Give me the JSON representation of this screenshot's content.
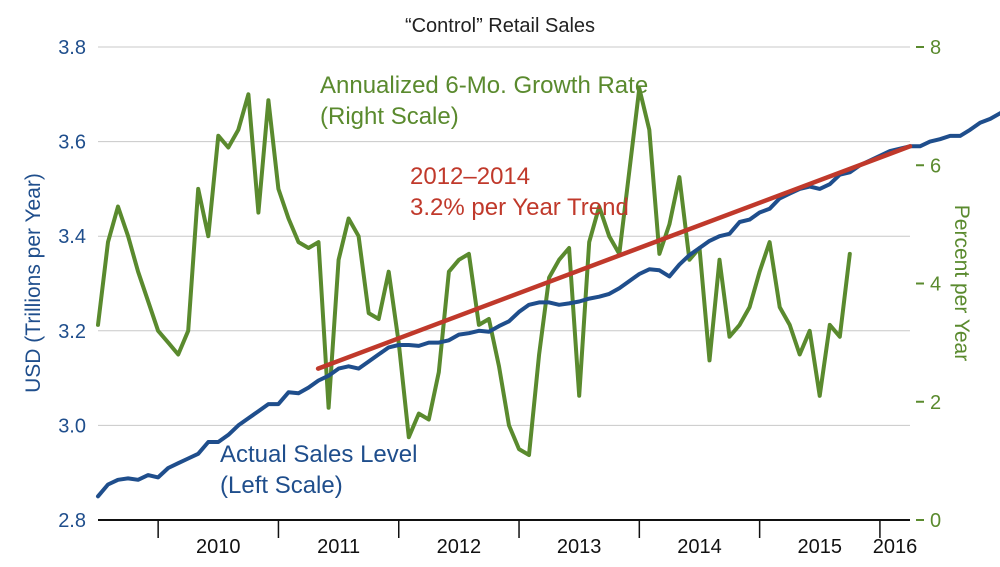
{
  "chart_data": {
    "type": "line",
    "title": "“Control” Retail Sales",
    "x_tick_labels": [
      "2010",
      "2011",
      "2012",
      "2013",
      "2014",
      "2015",
      "2016"
    ],
    "x_start": 2009.5,
    "x_end": 2016.25,
    "y_left": {
      "label": "USD (Trillions per Year)",
      "range": [
        2.8,
        3.8
      ],
      "ticks": [
        "2.8",
        "3.0",
        "3.2",
        "3.4",
        "3.6",
        "3.8"
      ]
    },
    "y_right": {
      "label": "Percent per Year",
      "range": [
        0,
        8
      ],
      "ticks": [
        "0",
        "2",
        "4",
        "6",
        "8"
      ]
    },
    "grid": true,
    "series": [
      {
        "name": "Actual Sales Level",
        "axis": "left",
        "color": "#1f4e8c",
        "start": 2009.5,
        "step": 0.08333,
        "values": [
          2.85,
          2.875,
          2.885,
          2.888,
          2.885,
          2.895,
          2.89,
          2.91,
          2.92,
          2.93,
          2.94,
          2.965,
          2.965,
          2.98,
          3.0,
          3.015,
          3.03,
          3.045,
          3.045,
          3.07,
          3.068,
          3.08,
          3.095,
          3.105,
          3.12,
          3.125,
          3.12,
          3.135,
          3.15,
          3.165,
          3.17,
          3.17,
          3.168,
          3.175,
          3.175,
          3.18,
          3.192,
          3.195,
          3.2,
          3.198,
          3.21,
          3.22,
          3.24,
          3.255,
          3.26,
          3.26,
          3.255,
          3.258,
          3.262,
          3.268,
          3.272,
          3.278,
          3.29,
          3.305,
          3.32,
          3.33,
          3.328,
          3.315,
          3.34,
          3.36,
          3.375,
          3.39,
          3.4,
          3.405,
          3.43,
          3.435,
          3.45,
          3.458,
          3.48,
          3.49,
          3.5,
          3.505,
          3.5,
          3.51,
          3.53,
          3.535,
          3.55,
          3.56,
          3.57,
          3.58,
          3.585,
          3.59,
          3.59,
          3.6,
          3.605,
          3.612,
          3.612,
          3.625,
          3.64,
          3.648,
          3.66
        ]
      },
      {
        "name": "Annualized 6-Mo. Growth Rate",
        "axis": "right",
        "color": "#5a8a2e",
        "start": 2009.5,
        "step": 0.08333,
        "values": [
          3.3,
          4.7,
          5.3,
          4.8,
          4.2,
          3.7,
          3.2,
          3.0,
          2.8,
          3.2,
          5.6,
          4.8,
          6.5,
          6.3,
          6.6,
          7.2,
          5.2,
          7.1,
          5.6,
          5.1,
          4.7,
          4.6,
          4.7,
          1.9,
          4.4,
          5.1,
          4.8,
          3.5,
          3.4,
          4.2,
          3.0,
          1.4,
          1.8,
          1.7,
          2.5,
          4.2,
          4.4,
          4.5,
          3.3,
          3.4,
          2.6,
          1.6,
          1.2,
          1.1,
          2.8,
          4.1,
          4.4,
          4.6,
          2.1,
          4.7,
          5.3,
          4.8,
          4.5,
          5.9,
          7.3,
          6.6,
          4.5,
          5.0,
          5.8,
          4.4,
          4.6,
          2.7,
          4.4,
          3.1,
          3.3,
          3.6,
          4.2,
          4.7,
          3.6,
          3.3,
          2.8,
          3.2,
          2.1,
          3.3,
          3.1,
          4.5
        ]
      },
      {
        "name": "2012–2014 Trend",
        "axis": "left",
        "color": "#c0392b",
        "points": [
          [
            2011.33,
            3.12
          ],
          [
            2016.25,
            3.59
          ]
        ]
      }
    ],
    "annotations": {
      "growth_line1": "Annualized 6-Mo. Growth Rate",
      "growth_line2": "(Right Scale)",
      "trend_line1": "2012–2014",
      "trend_line2": "3.2% per Year Trend",
      "sales_line1": "Actual Sales Level",
      "sales_line2": "(Left Scale)"
    }
  }
}
